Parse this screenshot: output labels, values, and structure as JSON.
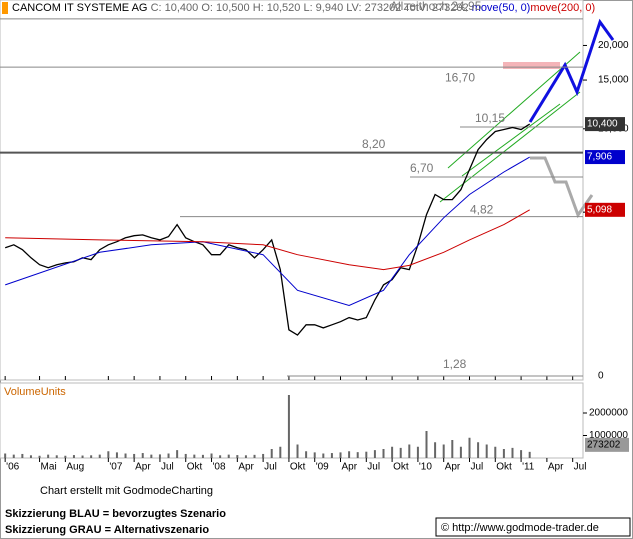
{
  "chart_data": {
    "type": "line",
    "header_info": "C: 10,400 O: 10,500 H: 10,520 L: 9,940 LV: 273202 TotV: 273202",
    "xlim": [
      -0.6,
      67.2
    ],
    "xticks": [
      {
        "value": 0,
        "label": "'06"
      },
      {
        "value": 4,
        "label": "Mai"
      },
      {
        "value": 7,
        "label": "Aug"
      },
      {
        "value": 12,
        "label": "'07"
      },
      {
        "value": 15,
        "label": "Apr"
      },
      {
        "value": 18,
        "label": "Jul"
      },
      {
        "value": 21,
        "label": "Okt"
      },
      {
        "value": 24,
        "label": "'08"
      },
      {
        "value": 27,
        "label": "Apr"
      },
      {
        "value": 30,
        "label": "Jul"
      },
      {
        "value": 33,
        "label": "Okt"
      },
      {
        "value": 36,
        "label": "'09"
      },
      {
        "value": 39,
        "label": "Apr"
      },
      {
        "value": 42,
        "label": "Jul"
      },
      {
        "value": 45,
        "label": "Okt"
      },
      {
        "value": 48,
        "label": "'10"
      },
      {
        "value": 51,
        "label": "Apr"
      },
      {
        "value": 54,
        "label": "Jul"
      },
      {
        "value": 57,
        "label": "Okt"
      },
      {
        "value": 60,
        "label": "'11"
      },
      {
        "value": 63,
        "label": "Apr"
      },
      {
        "value": 66,
        "label": "Jul"
      }
    ],
    "ylim": [
      1.28,
      28
    ],
    "yscale": "log",
    "yticks": [
      {
        "value": 20,
        "label": "20,000"
      },
      {
        "value": 15,
        "label": "15,000"
      },
      {
        "value": 10,
        "label": "10,000"
      },
      {
        "value": 5,
        "label": "5,000"
      }
    ],
    "y_floor_label": "0",
    "series": [
      {
        "name": "CANCOM IT SYSTEME AG",
        "color": "#000000",
        "x": [
          0,
          1,
          2,
          3,
          4,
          5,
          6,
          7,
          8,
          9,
          10,
          11,
          12,
          13,
          14,
          15,
          16,
          17,
          18,
          19,
          20,
          21,
          22,
          23,
          24,
          25,
          26,
          27,
          28,
          29,
          30,
          31,
          32,
          33,
          34,
          35,
          36,
          37,
          38,
          39,
          40,
          41,
          42,
          43,
          44,
          45,
          46,
          47,
          48,
          49,
          50,
          51,
          52,
          53,
          54,
          55,
          56,
          57,
          58,
          59,
          60,
          61
        ],
        "values": [
          3.72,
          3.81,
          3.66,
          3.42,
          3.23,
          3.15,
          3.23,
          3.28,
          3.31,
          3.42,
          3.37,
          3.66,
          3.81,
          3.91,
          4.04,
          4.11,
          4.14,
          4.04,
          3.97,
          4.08,
          4.51,
          4.04,
          3.91,
          3.81,
          3.51,
          3.51,
          3.81,
          3.72,
          3.66,
          3.42,
          3.66,
          3.97,
          3.1,
          1.88,
          1.8,
          1.96,
          1.96,
          1.91,
          1.96,
          2.01,
          2.08,
          2.04,
          2.08,
          2.41,
          2.73,
          2.85,
          3.15,
          3.1,
          3.81,
          4.9,
          5.79,
          5.55,
          5.55,
          6.03,
          7.13,
          8.41,
          9.15,
          9.78,
          9.94,
          10.11,
          9.94,
          10.4
        ]
      },
      {
        "name": "move(50, 0)",
        "color": "#0000cc",
        "x": [
          0,
          11,
          17,
          23,
          30,
          34,
          40,
          44,
          47,
          51,
          54,
          58,
          61
        ],
        "values": [
          2.73,
          3.58,
          3.81,
          3.91,
          3.51,
          2.61,
          2.3,
          2.61,
          3.51,
          4.77,
          5.79,
          6.98,
          7.906
        ]
      },
      {
        "name": "move(200, 0)",
        "color": "#cc0000",
        "x": [
          0,
          11,
          23,
          30,
          34,
          40,
          44,
          47,
          51,
          54,
          58,
          61
        ],
        "values": [
          4.04,
          3.97,
          3.91,
          3.81,
          3.51,
          3.23,
          3.1,
          3.21,
          3.58,
          3.97,
          4.51,
          5.098
        ]
      }
    ],
    "levels": [
      {
        "value": 24.95,
        "label": "Allzeithoch  24,95"
      },
      {
        "value": 16.7,
        "label": "16,70"
      },
      {
        "value": 10.15,
        "label": "10,15"
      },
      {
        "value": 8.2,
        "label": "8,20"
      },
      {
        "value": 6.7,
        "label": "6,70"
      },
      {
        "value": 4.82,
        "label": "4,82"
      },
      {
        "value": 1.28,
        "label": "1,28"
      }
    ],
    "price_tags": [
      {
        "value": 10.4,
        "label": "10,400",
        "color": "#333333"
      },
      {
        "value": 7.906,
        "label": "7,906",
        "color": "#0000cc"
      },
      {
        "value": 5.098,
        "label": "5,098",
        "color": "#cc0000"
      }
    ],
    "volume": {
      "title": "VolumeUnits",
      "ylim": [
        0,
        3200000
      ],
      "yticks": [
        1000000,
        2000000
      ],
      "color": "#666666",
      "values": [
        200000,
        150000,
        180000,
        120000,
        100000,
        150000,
        120000,
        100000,
        130000,
        110000,
        120000,
        150000,
        300000,
        250000,
        200000,
        180000,
        220000,
        150000,
        160000,
        200000,
        350000,
        180000,
        150000,
        140000,
        200000,
        120000,
        150000,
        130000,
        120000,
        140000,
        180000,
        400000,
        500000,
        2800000,
        600000,
        300000,
        250000,
        200000,
        220000,
        250000,
        300000,
        260000,
        280000,
        350000,
        400000,
        500000,
        450000,
        600000,
        500000,
        1200000,
        700000,
        600000,
        800000,
        500000,
        900000,
        700000,
        600000,
        500000,
        400000,
        450000,
        350000,
        273202
      ],
      "last_tag": "273202"
    },
    "footer_credit": "Chart erstellt mit GodmodeCharting",
    "note_blue": "Skizzierung BLAU = bevorzugtes Szenario",
    "note_grey": "Skizzierung GRAU = Alternativszenario",
    "source": "© http://www.godmode-trader.de"
  }
}
